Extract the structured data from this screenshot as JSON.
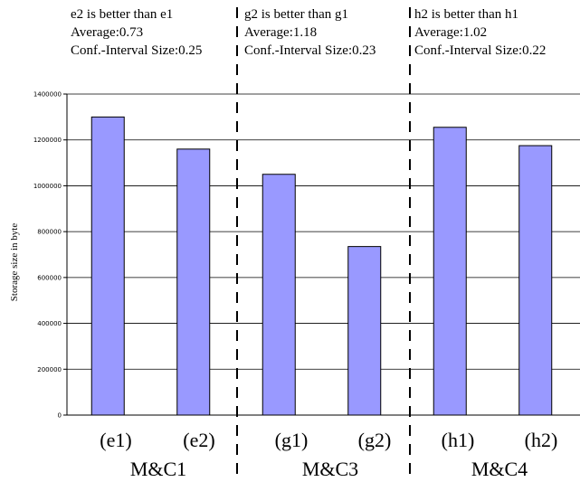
{
  "annotations": [
    {
      "lines": [
        "e2 is better than e1",
        "Average:0.73",
        "Conf.-Interval Size:0.25"
      ]
    },
    {
      "lines": [
        "g2 is better than g1",
        "Average:1.18",
        "Conf.-Interval Size:0.23"
      ]
    },
    {
      "lines": [
        "h2 is better than h1",
        "Average:1.02",
        "Conf.-Interval Size:0.22"
      ]
    }
  ],
  "chart_data": {
    "type": "bar",
    "categories": [
      "(e1)",
      "(e2)",
      "(g1)",
      "(g2)",
      "(h1)",
      "(h2)"
    ],
    "groups": [
      "M&C1",
      "M&C3",
      "M&C4"
    ],
    "values": [
      1300000,
      1160000,
      1050000,
      735000,
      1255000,
      1175000
    ],
    "ylabel": "Storage size in byte",
    "ylim": [
      0,
      1400000
    ],
    "yticks": [
      "0",
      "200000",
      "400000",
      "600000",
      "800000",
      "1000000",
      "1200000",
      "1400000"
    ],
    "grid": true,
    "bar_color": "#9999ff",
    "bar_edge_color": "#000000"
  }
}
